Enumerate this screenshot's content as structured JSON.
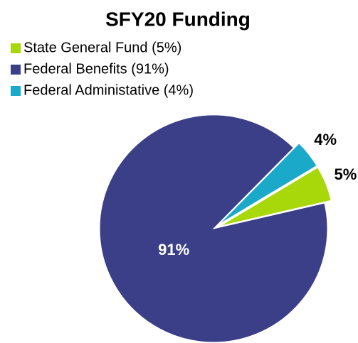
{
  "chart_data": {
    "type": "pie",
    "title": "SFY20 Funding",
    "categories": [
      "State General Fund (5%)",
      "Federal Benefits (91%)",
      "Federal Administative (4%)"
    ],
    "values": [
      5,
      91,
      4
    ],
    "value_labels": [
      "5%",
      "91%",
      "4%"
    ],
    "colors": [
      "#a8d70a",
      "#3a3f88",
      "#1aa9c9"
    ],
    "legend": "top-left"
  }
}
